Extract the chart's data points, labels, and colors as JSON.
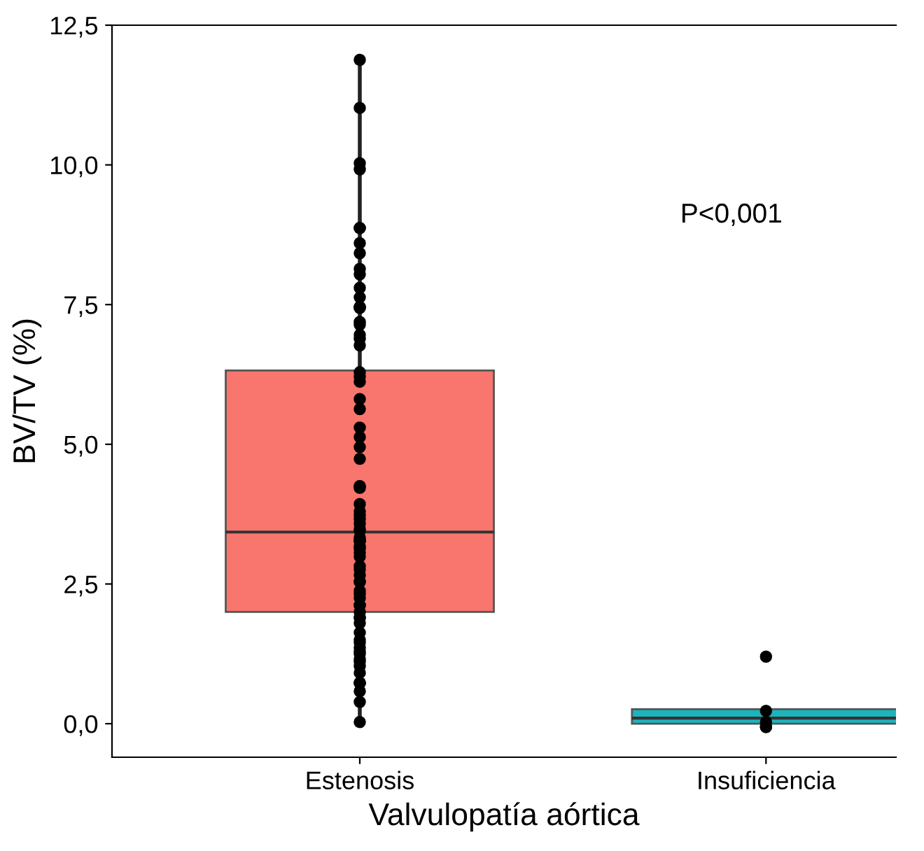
{
  "chart_data": {
    "type": "box",
    "xlabel": "Valvulopatía aórtica",
    "ylabel": "BV/TV (%)",
    "categories": [
      "Estenosis",
      "Insuficiencia"
    ],
    "colors": [
      "#f8766d",
      "#1bb5bd"
    ],
    "boxes": [
      {
        "low": 0.1,
        "q1": 2.0,
        "median": 3.43,
        "q3": 6.32,
        "high": 11.9
      },
      {
        "low": 0.0,
        "q1": 0.0,
        "median": 0.1,
        "q3": 0.26,
        "high": 0.26
      }
    ],
    "ylim": [
      -0.6,
      12.5
    ],
    "yticks": [
      {
        "value": 0,
        "label": "0,0"
      },
      {
        "value": 2.5,
        "label": "2,5"
      },
      {
        "value": 5,
        "label": "5,0"
      },
      {
        "value": 7.5,
        "label": "7,5"
      },
      {
        "value": 10,
        "label": "10,0"
      },
      {
        "value": 12.5,
        "label": "12,5"
      }
    ],
    "grid": false,
    "annotations": [
      "P<0,001"
    ],
    "series": [
      {
        "type": "scatter",
        "color": "#000000",
        "marker": "circle",
        "x": [
          "Estenosis",
          "Estenosis",
          "Estenosis",
          "Estenosis",
          "Estenosis",
          "Estenosis",
          "Estenosis",
          "Estenosis",
          "Estenosis",
          "Estenosis",
          "Estenosis",
          "Estenosis",
          "Estenosis",
          "Estenosis",
          "Estenosis",
          "Estenosis",
          "Estenosis",
          "Estenosis",
          "Estenosis",
          "Estenosis",
          "Estenosis",
          "Estenosis",
          "Estenosis",
          "Estenosis",
          "Estenosis",
          "Estenosis",
          "Estenosis",
          "Estenosis",
          "Estenosis",
          "Estenosis",
          "Estenosis",
          "Estenosis",
          "Estenosis",
          "Estenosis",
          "Estenosis",
          "Estenosis",
          "Estenosis",
          "Estenosis",
          "Estenosis",
          "Estenosis",
          "Estenosis",
          "Estenosis",
          "Estenosis",
          "Estenosis",
          "Estenosis",
          "Estenosis",
          "Estenosis",
          "Estenosis",
          "Estenosis",
          "Estenosis",
          "Estenosis",
          "Estenosis",
          "Estenosis",
          "Estenosis",
          "Estenosis",
          "Estenosis",
          "Estenosis",
          "Estenosis",
          "Estenosis",
          "Estenosis",
          "Estenosis",
          "Estenosis",
          "Estenosis",
          "Estenosis",
          "Estenosis",
          "Estenosis",
          "Estenosis",
          "Estenosis",
          "Estenosis",
          "Estenosis",
          "Estenosis",
          "Estenosis",
          "Estenosis",
          "Estenosis",
          "Estenosis",
          "Estenosis",
          "Estenosis",
          "Insuficiencia",
          "Insuficiencia",
          "Insuficiencia",
          "Insuficiencia",
          "Insuficiencia"
        ],
        "values": [
          11.88,
          11.02,
          10.03,
          9.92,
          8.87,
          8.87,
          8.6,
          8.42,
          8.14,
          8.04,
          7.8,
          7.63,
          7.46,
          7.44,
          7.45,
          7.19,
          7.14,
          6.96,
          6.89,
          6.77,
          6.29,
          6.21,
          6.12,
          5.81,
          5.63,
          5.3,
          5.13,
          4.95,
          4.74,
          4.25,
          4.22,
          4.25,
          3.93,
          3.8,
          3.73,
          3.66,
          3.58,
          3.48,
          3.45,
          3.33,
          3.27,
          3.27,
          3.27,
          3.17,
          3.13,
          3.06,
          2.99,
          2.82,
          2.76,
          2.66,
          2.54,
          2.54,
          2.38,
          2.32,
          2.25,
          2.12,
          2.12,
          2.0,
          1.9,
          1.9,
          1.8,
          1.63,
          1.5,
          1.45,
          1.36,
          1.29,
          1.25,
          1.15,
          1.11,
          1.03,
          0.91,
          0.73,
          0.73,
          0.73,
          0.58,
          0.39,
          0.03,
          1.2,
          0.23,
          0.03,
          -0.06,
          -0.06
        ]
      }
    ]
  }
}
